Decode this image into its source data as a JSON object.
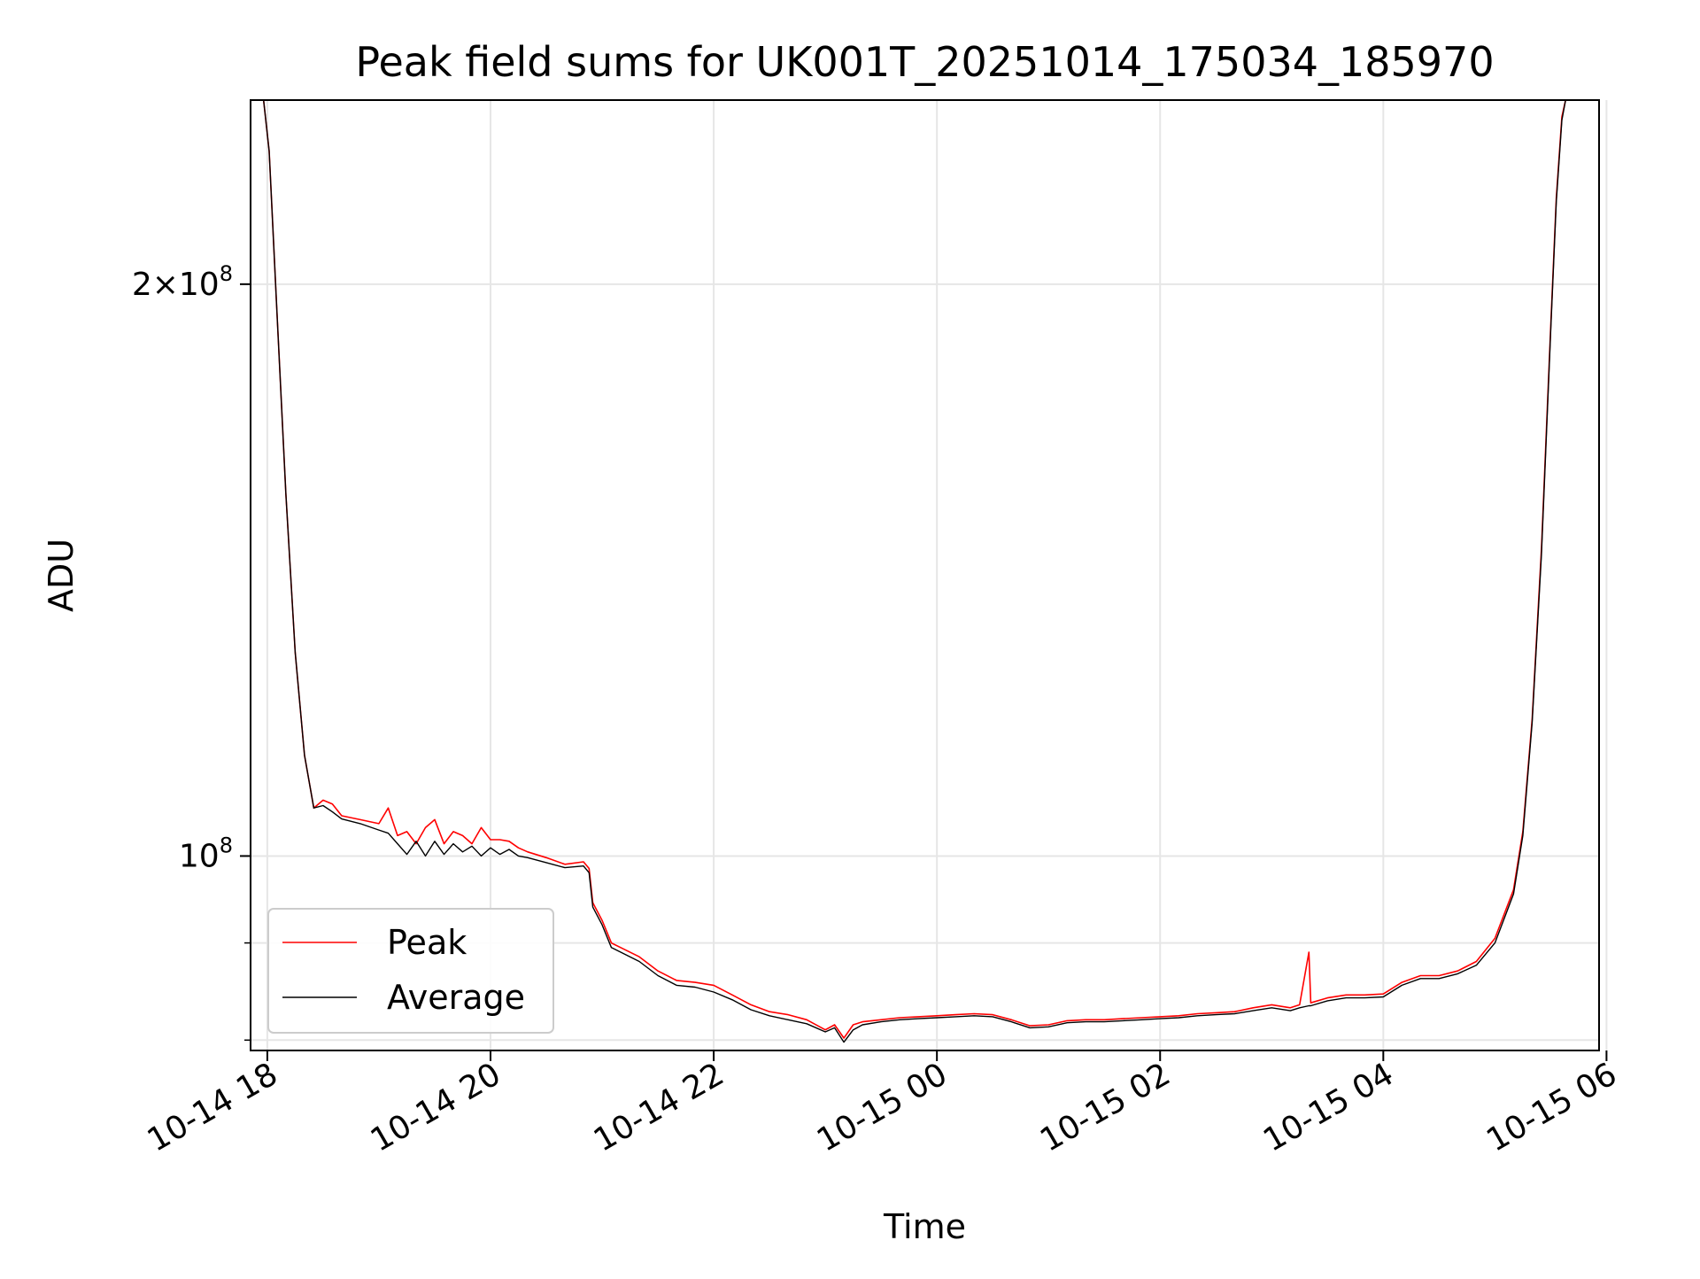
{
  "chart_data": {
    "type": "line",
    "title": "Peak field sums for UK001T_20251014_175034_185970",
    "xlabel": "Time",
    "ylabel": "ADU",
    "xlim": [
      "2025-10-14 17:51",
      "2025-10-15 05:56"
    ],
    "ylim": [
      79000000,
      250000000
    ],
    "yscale": "log",
    "grid": true,
    "legend_position": "lower-left",
    "x_ticks": [
      {
        "value": "2025-10-14 18:00",
        "label": "10-14 18"
      },
      {
        "value": "2025-10-14 20:00",
        "label": "10-14 20"
      },
      {
        "value": "2025-10-14 22:00",
        "label": "10-14 22"
      },
      {
        "value": "2025-10-15 00:00",
        "label": "10-15 00"
      },
      {
        "value": "2025-10-15 02:00",
        "label": "10-15 02"
      },
      {
        "value": "2025-10-15 04:00",
        "label": "10-15 04"
      },
      {
        "value": "2025-10-15 06:00",
        "label": "10-15 06"
      }
    ],
    "y_ticks": [
      {
        "value": 200000000,
        "base": "2×10",
        "exp": "8"
      },
      {
        "value": 100000000,
        "base": "10",
        "exp": "8"
      }
    ],
    "y_minor_ticks": [
      90000000,
      80000000
    ],
    "series": [
      {
        "name": "Peak",
        "color": "#ff0000",
        "points": [
          [
            "2025-10-14 17:51",
            250000000
          ],
          [
            "2025-10-14 17:58",
            250000000
          ],
          [
            "2025-10-14 18:01",
            235000000
          ],
          [
            "2025-10-14 18:05",
            195000000
          ],
          [
            "2025-10-14 18:10",
            155000000
          ],
          [
            "2025-10-14 18:15",
            128000000
          ],
          [
            "2025-10-14 18:20",
            113000000
          ],
          [
            "2025-10-14 18:25",
            106000000
          ],
          [
            "2025-10-14 18:30",
            107000000
          ],
          [
            "2025-10-14 18:35",
            106500000
          ],
          [
            "2025-10-14 18:40",
            105000000
          ],
          [
            "2025-10-14 18:50",
            104500000
          ],
          [
            "2025-10-14 19:00",
            104000000
          ],
          [
            "2025-10-14 19:05",
            106000000
          ],
          [
            "2025-10-14 19:10",
            102500000
          ],
          [
            "2025-10-14 19:15",
            103000000
          ],
          [
            "2025-10-14 19:20",
            101500000
          ],
          [
            "2025-10-14 19:25",
            103500000
          ],
          [
            "2025-10-14 19:30",
            104500000
          ],
          [
            "2025-10-14 19:35",
            101500000
          ],
          [
            "2025-10-14 19:40",
            103000000
          ],
          [
            "2025-10-14 19:45",
            102500000
          ],
          [
            "2025-10-14 19:50",
            101500000
          ],
          [
            "2025-10-14 19:55",
            103500000
          ],
          [
            "2025-10-14 20:00",
            102000000
          ],
          [
            "2025-10-14 20:05",
            102000000
          ],
          [
            "2025-10-14 20:10",
            101800000
          ],
          [
            "2025-10-14 20:15",
            101000000
          ],
          [
            "2025-10-14 20:20",
            100500000
          ],
          [
            "2025-10-14 20:30",
            99800000
          ],
          [
            "2025-10-14 20:40",
            99000000
          ],
          [
            "2025-10-14 20:50",
            99300000
          ],
          [
            "2025-10-14 20:53",
            98500000
          ],
          [
            "2025-10-14 20:55",
            94500000
          ],
          [
            "2025-10-14 21:00",
            92500000
          ],
          [
            "2025-10-14 21:05",
            90000000
          ],
          [
            "2025-10-14 21:10",
            89500000
          ],
          [
            "2025-10-14 21:20",
            88500000
          ],
          [
            "2025-10-14 21:30",
            87000000
          ],
          [
            "2025-10-14 21:40",
            86000000
          ],
          [
            "2025-10-14 21:50",
            85800000
          ],
          [
            "2025-10-14 22:00",
            85500000
          ],
          [
            "2025-10-14 22:10",
            84500000
          ],
          [
            "2025-10-14 22:20",
            83500000
          ],
          [
            "2025-10-14 22:30",
            82800000
          ],
          [
            "2025-10-14 22:40",
            82500000
          ],
          [
            "2025-10-14 22:50",
            82000000
          ],
          [
            "2025-10-14 23:00",
            81000000
          ],
          [
            "2025-10-14 23:05",
            81500000
          ],
          [
            "2025-10-14 23:10",
            80200000
          ],
          [
            "2025-10-14 23:15",
            81500000
          ],
          [
            "2025-10-14 23:20",
            81800000
          ],
          [
            "2025-10-14 23:30",
            82000000
          ],
          [
            "2025-10-14 23:40",
            82200000
          ],
          [
            "2025-10-14 23:50",
            82300000
          ],
          [
            "2025-10-15 00:00",
            82400000
          ],
          [
            "2025-10-15 00:10",
            82500000
          ],
          [
            "2025-10-15 00:20",
            82600000
          ],
          [
            "2025-10-15 00:30",
            82500000
          ],
          [
            "2025-10-15 00:40",
            82000000
          ],
          [
            "2025-10-15 00:50",
            81400000
          ],
          [
            "2025-10-15 01:00",
            81500000
          ],
          [
            "2025-10-15 01:10",
            81900000
          ],
          [
            "2025-10-15 01:20",
            82000000
          ],
          [
            "2025-10-15 01:30",
            82000000
          ],
          [
            "2025-10-15 01:40",
            82100000
          ],
          [
            "2025-10-15 01:50",
            82200000
          ],
          [
            "2025-10-15 02:00",
            82300000
          ],
          [
            "2025-10-15 02:10",
            82400000
          ],
          [
            "2025-10-15 02:20",
            82600000
          ],
          [
            "2025-10-15 02:30",
            82700000
          ],
          [
            "2025-10-15 02:40",
            82800000
          ],
          [
            "2025-10-15 02:50",
            83200000
          ],
          [
            "2025-10-15 03:00",
            83500000
          ],
          [
            "2025-10-15 03:10",
            83200000
          ],
          [
            "2025-10-15 03:15",
            83500000
          ],
          [
            "2025-10-15 03:20",
            89000000
          ],
          [
            "2025-10-15 03:21",
            83700000
          ],
          [
            "2025-10-15 03:30",
            84200000
          ],
          [
            "2025-10-15 03:40",
            84500000
          ],
          [
            "2025-10-15 03:50",
            84500000
          ],
          [
            "2025-10-15 04:00",
            84600000
          ],
          [
            "2025-10-15 04:10",
            85800000
          ],
          [
            "2025-10-15 04:20",
            86500000
          ],
          [
            "2025-10-15 04:30",
            86500000
          ],
          [
            "2025-10-15 04:40",
            87000000
          ],
          [
            "2025-10-15 04:50",
            88000000
          ],
          [
            "2025-10-15 05:00",
            90500000
          ],
          [
            "2025-10-15 05:10",
            96000000
          ],
          [
            "2025-10-15 05:15",
            103000000
          ],
          [
            "2025-10-15 05:20",
            118000000
          ],
          [
            "2025-10-15 05:25",
            145000000
          ],
          [
            "2025-10-15 05:30",
            190000000
          ],
          [
            "2025-10-15 05:33",
            222000000
          ],
          [
            "2025-10-15 05:36",
            245000000
          ],
          [
            "2025-10-15 05:38",
            250000000
          ],
          [
            "2025-10-15 05:56",
            250000000
          ]
        ]
      },
      {
        "name": "Average",
        "color": "#000000",
        "points": [
          [
            "2025-10-14 17:51",
            250000000
          ],
          [
            "2025-10-14 17:58",
            250000000
          ],
          [
            "2025-10-14 18:01",
            235000000
          ],
          [
            "2025-10-14 18:05",
            195000000
          ],
          [
            "2025-10-14 18:10",
            155000000
          ],
          [
            "2025-10-14 18:15",
            128000000
          ],
          [
            "2025-10-14 18:20",
            113000000
          ],
          [
            "2025-10-14 18:25",
            106000000
          ],
          [
            "2025-10-14 18:30",
            106300000
          ],
          [
            "2025-10-14 18:35",
            105500000
          ],
          [
            "2025-10-14 18:40",
            104600000
          ],
          [
            "2025-10-14 18:50",
            104000000
          ],
          [
            "2025-10-14 19:00",
            103200000
          ],
          [
            "2025-10-14 19:05",
            102800000
          ],
          [
            "2025-10-14 19:10",
            101500000
          ],
          [
            "2025-10-14 19:15",
            100200000
          ],
          [
            "2025-10-14 19:20",
            101800000
          ],
          [
            "2025-10-14 19:25",
            100000000
          ],
          [
            "2025-10-14 19:30",
            101800000
          ],
          [
            "2025-10-14 19:35",
            100200000
          ],
          [
            "2025-10-14 19:40",
            101500000
          ],
          [
            "2025-10-14 19:45",
            100500000
          ],
          [
            "2025-10-14 19:50",
            101200000
          ],
          [
            "2025-10-14 19:55",
            100000000
          ],
          [
            "2025-10-14 20:00",
            101000000
          ],
          [
            "2025-10-14 20:05",
            100200000
          ],
          [
            "2025-10-14 20:10",
            100800000
          ],
          [
            "2025-10-14 20:15",
            100000000
          ],
          [
            "2025-10-14 20:20",
            99800000
          ],
          [
            "2025-10-14 20:30",
            99200000
          ],
          [
            "2025-10-14 20:40",
            98600000
          ],
          [
            "2025-10-14 20:50",
            98800000
          ],
          [
            "2025-10-14 20:53",
            98000000
          ],
          [
            "2025-10-14 20:55",
            94000000
          ],
          [
            "2025-10-14 21:00",
            92000000
          ],
          [
            "2025-10-14 21:05",
            89500000
          ],
          [
            "2025-10-14 21:10",
            89000000
          ],
          [
            "2025-10-14 21:20",
            88000000
          ],
          [
            "2025-10-14 21:30",
            86500000
          ],
          [
            "2025-10-14 21:40",
            85500000
          ],
          [
            "2025-10-14 21:50",
            85300000
          ],
          [
            "2025-10-14 22:00",
            84800000
          ],
          [
            "2025-10-14 22:10",
            84000000
          ],
          [
            "2025-10-14 22:20",
            83000000
          ],
          [
            "2025-10-14 22:30",
            82400000
          ],
          [
            "2025-10-14 22:40",
            82000000
          ],
          [
            "2025-10-14 22:50",
            81600000
          ],
          [
            "2025-10-14 23:00",
            80800000
          ],
          [
            "2025-10-14 23:05",
            81200000
          ],
          [
            "2025-10-14 23:10",
            79800000
          ],
          [
            "2025-10-14 23:15",
            81000000
          ],
          [
            "2025-10-14 23:20",
            81500000
          ],
          [
            "2025-10-14 23:30",
            81800000
          ],
          [
            "2025-10-14 23:40",
            82000000
          ],
          [
            "2025-10-14 23:50",
            82100000
          ],
          [
            "2025-10-15 00:00",
            82200000
          ],
          [
            "2025-10-15 00:10",
            82300000
          ],
          [
            "2025-10-15 00:20",
            82400000
          ],
          [
            "2025-10-15 00:30",
            82300000
          ],
          [
            "2025-10-15 00:40",
            81800000
          ],
          [
            "2025-10-15 00:50",
            81200000
          ],
          [
            "2025-10-15 01:00",
            81300000
          ],
          [
            "2025-10-15 01:10",
            81700000
          ],
          [
            "2025-10-15 01:20",
            81800000
          ],
          [
            "2025-10-15 01:30",
            81800000
          ],
          [
            "2025-10-15 01:40",
            81900000
          ],
          [
            "2025-10-15 01:50",
            82000000
          ],
          [
            "2025-10-15 02:00",
            82100000
          ],
          [
            "2025-10-15 02:10",
            82200000
          ],
          [
            "2025-10-15 02:20",
            82400000
          ],
          [
            "2025-10-15 02:30",
            82500000
          ],
          [
            "2025-10-15 02:40",
            82600000
          ],
          [
            "2025-10-15 02:50",
            82900000
          ],
          [
            "2025-10-15 03:00",
            83200000
          ],
          [
            "2025-10-15 03:10",
            82900000
          ],
          [
            "2025-10-15 03:15",
            83200000
          ],
          [
            "2025-10-15 03:20",
            83400000
          ],
          [
            "2025-10-15 03:21",
            83400000
          ],
          [
            "2025-10-15 03:30",
            83900000
          ],
          [
            "2025-10-15 03:40",
            84200000
          ],
          [
            "2025-10-15 03:50",
            84200000
          ],
          [
            "2025-10-15 04:00",
            84300000
          ],
          [
            "2025-10-15 04:10",
            85500000
          ],
          [
            "2025-10-15 04:20",
            86200000
          ],
          [
            "2025-10-15 04:30",
            86200000
          ],
          [
            "2025-10-15 04:40",
            86700000
          ],
          [
            "2025-10-15 04:50",
            87600000
          ],
          [
            "2025-10-15 05:00",
            90000000
          ],
          [
            "2025-10-15 05:10",
            95500000
          ],
          [
            "2025-10-15 05:15",
            102500000
          ],
          [
            "2025-10-15 05:20",
            117500000
          ],
          [
            "2025-10-15 05:25",
            144000000
          ],
          [
            "2025-10-15 05:30",
            189000000
          ],
          [
            "2025-10-15 05:33",
            221000000
          ],
          [
            "2025-10-15 05:36",
            244000000
          ],
          [
            "2025-10-15 05:38",
            250000000
          ],
          [
            "2025-10-15 05:56",
            250000000
          ]
        ]
      }
    ]
  }
}
